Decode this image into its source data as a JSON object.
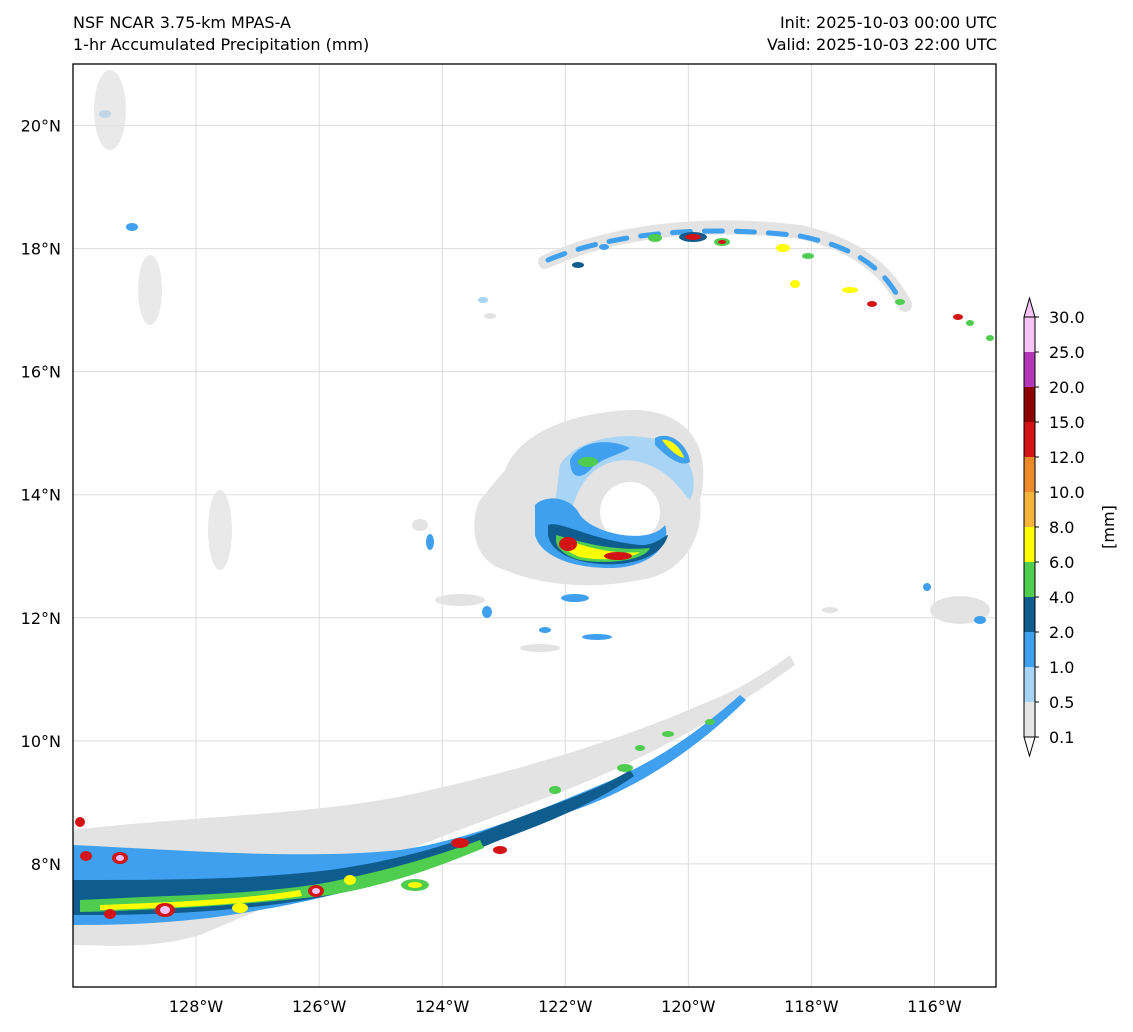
{
  "header": {
    "title_line1": "NSF NCAR 3.75-km MPAS-A",
    "title_line2": "1-hr Accumulated Precipitation (mm)",
    "init": "Init: 2025-10-03 00:00 UTC",
    "valid": "Valid: 2025-10-03 22:00 UTC"
  },
  "map": {
    "lon_labels": [
      "128°W",
      "126°W",
      "124°W",
      "122°W",
      "120°W",
      "118°W",
      "116°W"
    ],
    "lat_labels": [
      "20°N",
      "18°N",
      "16°N",
      "14°N",
      "12°N",
      "10°N",
      "8°N"
    ],
    "lon_values": [
      -128,
      -126,
      -124,
      -122,
      -120,
      -118,
      -116
    ],
    "lat_values": [
      20,
      18,
      16,
      14,
      12,
      10,
      8
    ],
    "extent": {
      "lon_min": -130,
      "lon_max": -115,
      "lat_min": 6,
      "lat_max": 21
    },
    "gridlines": true
  },
  "colorbar": {
    "label": "[mm]",
    "levels": [
      "0.1",
      "0.5",
      "1.0",
      "2.0",
      "4.0",
      "6.0",
      "8.0",
      "10.0",
      "12.0",
      "15.0",
      "20.0",
      "25.0",
      "30.0"
    ],
    "colors": [
      "#e6e6e6",
      "#a8d4f5",
      "#3ea0ee",
      "#0f5d8f",
      "#4ecd4e",
      "#ffff00",
      "#f8b43a",
      "#ef8a2a",
      "#d21414",
      "#8c0000",
      "#b337b8",
      "#f5c3f5"
    ],
    "extend": "both"
  }
}
